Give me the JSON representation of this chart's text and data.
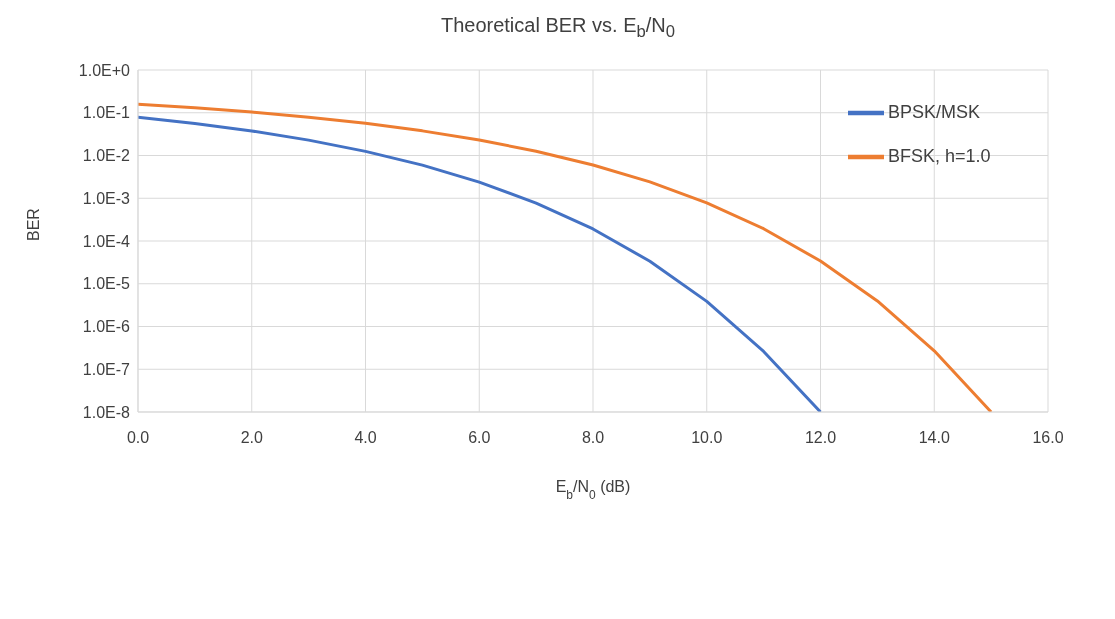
{
  "chart_data": {
    "type": "line",
    "title": "Theoretical BER vs. E$_{b}$/N$_{0}$",
    "xlabel": "E$_{b}$/N$_{0}$ (dB)",
    "ylabel": "BER",
    "x": [
      0,
      1,
      2,
      3,
      4,
      5,
      6,
      7,
      8,
      9,
      10,
      11,
      12,
      13,
      14,
      15
    ],
    "series": [
      {
        "name": "BPSK/MSK",
        "color": "#4472c4",
        "values": [
          0.0786,
          0.0563,
          0.0375,
          0.0229,
          0.0125,
          0.00595,
          0.00239,
          0.00077,
          0.000191,
          3.36e-05,
          3.87e-06,
          2.61e-07,
          1e-08,
          null,
          null,
          null
        ]
      },
      {
        "name": "BFSK, h=1.0",
        "color": "#ed7d31",
        "values": [
          0.159,
          0.131,
          0.104,
          0.0789,
          0.0565,
          0.0377,
          0.023,
          0.0126,
          0.006,
          0.00242,
          0.00078,
          0.000194,
          3.4e-05,
          3.96e-06,
          2.7e-07,
          1e-08
        ]
      }
    ],
    "xlim": [
      0,
      16
    ],
    "xticks": [
      {
        "value": 0,
        "label": "0.0"
      },
      {
        "value": 2,
        "label": "2.0"
      },
      {
        "value": 4,
        "label": "4.0"
      },
      {
        "value": 6,
        "label": "6.0"
      },
      {
        "value": 8,
        "label": "8.0"
      },
      {
        "value": 10,
        "label": "10.0"
      },
      {
        "value": 12,
        "label": "12.0"
      },
      {
        "value": 14,
        "label": "14.0"
      },
      {
        "value": 16,
        "label": "16.0"
      }
    ],
    "ylim": [
      1e-08,
      1
    ],
    "yticks": [
      {
        "value": 1e-08,
        "label": "1.0E-8"
      },
      {
        "value": 1e-07,
        "label": "1.0E-7"
      },
      {
        "value": 1e-06,
        "label": "1.0E-6"
      },
      {
        "value": 1e-05,
        "label": "1.0E-5"
      },
      {
        "value": 0.0001,
        "label": "1.0E-4"
      },
      {
        "value": 0.001,
        "label": "1.0E-3"
      },
      {
        "value": 0.01,
        "label": "1.0E-2"
      },
      {
        "value": 0.1,
        "label": "1.0E-1"
      },
      {
        "value": 1,
        "label": "1.0E+0"
      }
    ],
    "log": "y",
    "grid": true,
    "legend": "top right",
    "marker": "none",
    "line_style": "solid"
  }
}
